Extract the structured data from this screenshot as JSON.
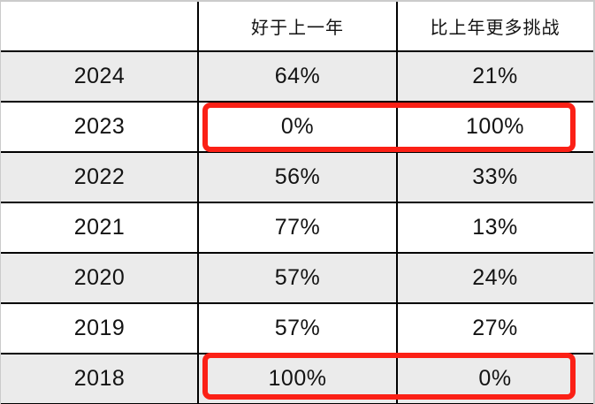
{
  "table": {
    "header": {
      "col0": "",
      "col1": "好于上一年",
      "col2": "比上年更多挑战"
    },
    "rows": [
      {
        "year": "2024",
        "better": "64%",
        "challenge": "21%"
      },
      {
        "year": "2023",
        "better": "0%",
        "challenge": "100%"
      },
      {
        "year": "2022",
        "better": "56%",
        "challenge": "33%"
      },
      {
        "year": "2021",
        "better": "77%",
        "challenge": "13%"
      },
      {
        "year": "2020",
        "better": "57%",
        "challenge": "24%"
      },
      {
        "year": "2019",
        "better": "57%",
        "challenge": "27%"
      },
      {
        "year": "2018",
        "better": "100%",
        "challenge": "0%"
      }
    ]
  },
  "highlights": {
    "highlighted_years": [
      "2023",
      "2018"
    ],
    "color": "#fb2016"
  },
  "colors": {
    "row_alt_background": "#ebebeb",
    "grid_line": "#000000",
    "outer_border": "#cbcbcb",
    "text": "#131313"
  },
  "chart_data": {
    "type": "table",
    "columns": [
      "",
      "好于上一年",
      "比上年更多挑战"
    ],
    "rows": [
      [
        "2024",
        "64%",
        "21%"
      ],
      [
        "2023",
        "0%",
        "100%"
      ],
      [
        "2022",
        "56%",
        "33%"
      ],
      [
        "2021",
        "77%",
        "13%"
      ],
      [
        "2020",
        "57%",
        "24%"
      ],
      [
        "2019",
        "57%",
        "27%"
      ],
      [
        "2018",
        "100%",
        "0%"
      ]
    ],
    "highlighted_rows": [
      "2023",
      "2018"
    ],
    "notes": "Alternating gray/white zebra rows; red annotation boxes around the two percentage cells of rows 2023 and 2018"
  }
}
